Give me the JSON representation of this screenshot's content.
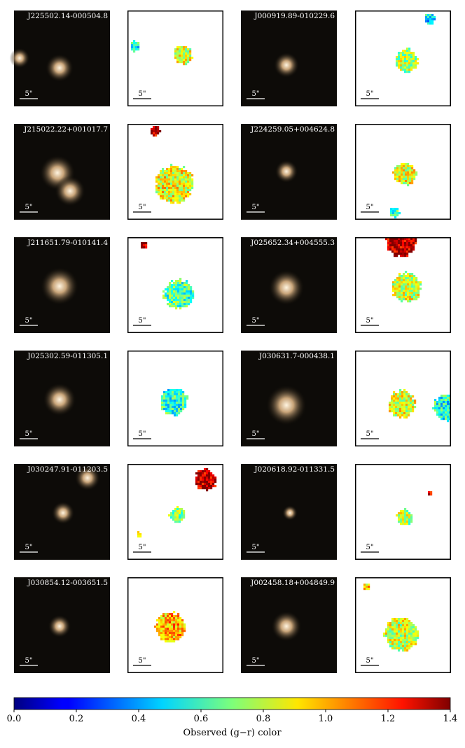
{
  "galaxies": [
    {
      "id": "J225502.14-000504.8",
      "image_scale": "5\"",
      "map_scale": "5\""
    },
    {
      "id": "J000919.89-010229.6",
      "image_scale": "5\"",
      "map_scale": "5\""
    },
    {
      "id": "J215022.22+001017.7",
      "image_scale": "5\"",
      "map_scale": "5\""
    },
    {
      "id": "J224259.05+004624.8",
      "image_scale": "5\"",
      "map_scale": "5\""
    },
    {
      "id": "J211651.79-010141.4",
      "image_scale": "5\"",
      "map_scale": "5\""
    },
    {
      "id": "J025652.34+004555.3",
      "image_scale": "5\"",
      "map_scale": "5\""
    },
    {
      "id": "J025302.59-011305.1",
      "image_scale": "5\"",
      "map_scale": "5\""
    },
    {
      "id": "J030631.7-000438.1",
      "image_scale": "5\"",
      "map_scale": "5\""
    },
    {
      "id": "J030247.91-011203.5",
      "image_scale": "5\"",
      "map_scale": "5\""
    },
    {
      "id": "J020618.92-011331.5",
      "image_scale": "5\"",
      "map_scale": "5\""
    },
    {
      "id": "J030854.12-003651.5",
      "image_scale": "5\"",
      "map_scale": "5\""
    },
    {
      "id": "J002458.18+004849.9",
      "image_scale": "5\"",
      "map_scale": "5\""
    }
  ],
  "colorbar": {
    "label": "Observed (g−r) color",
    "lim": [
      0,
      1.4
    ],
    "ticks": [
      {
        "value": 0,
        "label": "0.0"
      },
      {
        "value": 0.2,
        "label": "0.2"
      },
      {
        "value": 0.4,
        "label": "0.4"
      },
      {
        "value": 0.6,
        "label": "0.6"
      },
      {
        "value": 0.8,
        "label": "0.8"
      },
      {
        "value": 1,
        "label": "1.0"
      },
      {
        "value": 1.2,
        "label": "1.2"
      },
      {
        "value": 1.4,
        "label": "1.4"
      }
    ]
  }
}
